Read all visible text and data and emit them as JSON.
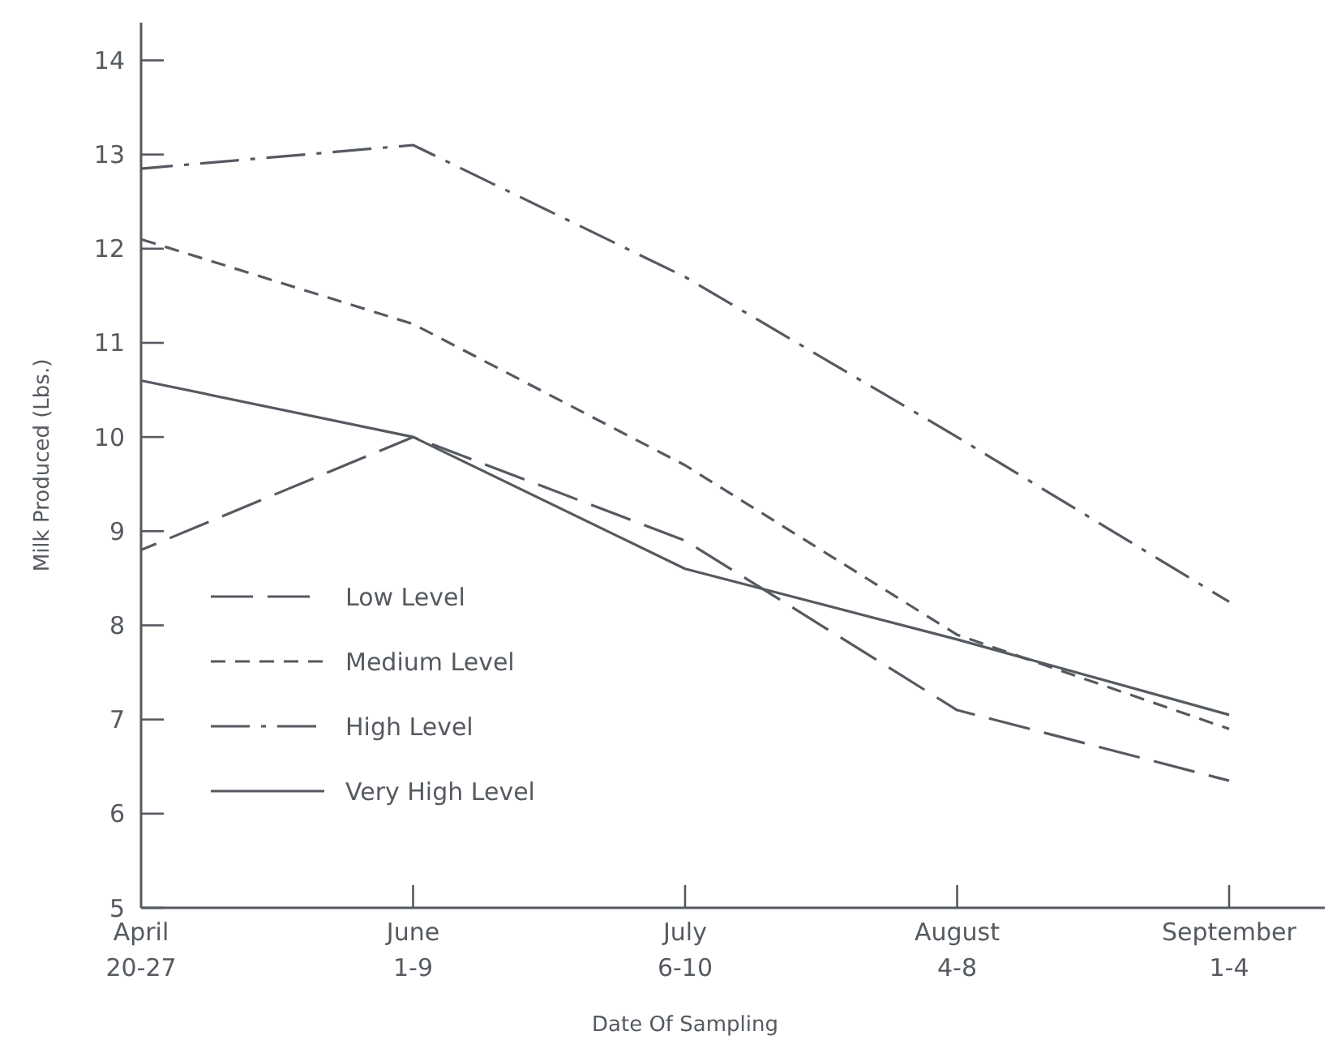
{
  "chart_data": {
    "type": "line",
    "xlabel": "Date Of Sampling",
    "ylabel": "Milk Produced (Lbs.)",
    "categories": [
      "April\n20-27",
      "June\n1-9",
      "July\n6-10",
      "August\n4-8",
      "September\n1-4"
    ],
    "ylim": [
      5,
      14.4
    ],
    "yticks": [
      5,
      6,
      7,
      8,
      9,
      10,
      11,
      12,
      13,
      14
    ],
    "grid": false,
    "legend": "bottom left",
    "marker": "none",
    "series": [
      {
        "name": "Low Level",
        "color": "#555a60",
        "line_style": "longdash",
        "values": [
          8.8,
          10.0,
          8.9,
          7.1,
          6.35
        ]
      },
      {
        "name": "Medium Level",
        "color": "#555a60",
        "line_style": "dashed",
        "values": [
          12.1,
          11.2,
          9.7,
          7.9,
          6.9
        ]
      },
      {
        "name": "High Level",
        "color": "#555a60",
        "line_style": "dashdot",
        "values": [
          12.85,
          13.1,
          11.7,
          10.0,
          8.25
        ]
      },
      {
        "name": "Very High Level",
        "color": "#555a60",
        "line_style": "solid",
        "values": [
          10.6,
          10.0,
          8.6,
          7.85,
          7.05
        ]
      }
    ]
  }
}
